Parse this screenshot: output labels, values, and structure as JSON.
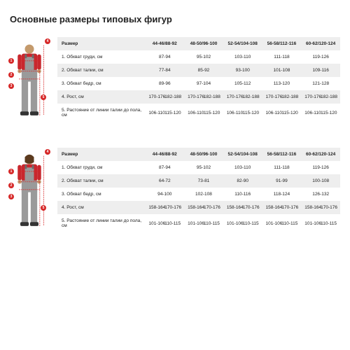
{
  "page_title": "Основные размеры типовых фигур",
  "colors": {
    "accent": "#d62828",
    "head": "#c49a6c",
    "shirt": "#c9272d",
    "overall": "#9a9a9a",
    "strap": "#6b6b6b",
    "header_bg": "#eeeeee",
    "row_alt_bg": "#eeeeee",
    "text": "#222222"
  },
  "tables": [
    {
      "figure_type": "male",
      "markers": [
        "1",
        "2",
        "3",
        "4",
        "5"
      ],
      "header_label": "Размер",
      "size_cols": [
        "44-46/88-92",
        "48-50/96-100",
        "52-54/104-108",
        "56-58/112-116",
        "60-62/120-124"
      ],
      "rows": [
        {
          "label": "1. Обхват груди, см",
          "cells": [
            "87-94",
            "95-102",
            "103-110",
            "111-118",
            "119-126"
          ]
        },
        {
          "label": "2. Обхват талии, см",
          "cells": [
            "77-84",
            "85-92",
            "93-100",
            "101-108",
            "109-116"
          ]
        },
        {
          "label": "3. Обхват бедр, см",
          "cells": [
            "89-96",
            "97-104",
            "105-112",
            "113-120",
            "121-128"
          ]
        },
        {
          "label": "4. Рост, см",
          "cells_split": [
            [
              "170-176",
              "182-188"
            ],
            [
              "170-176",
              "182-188"
            ],
            [
              "170-176",
              "182-188"
            ],
            [
              "170-176",
              "182-188"
            ],
            [
              "170-176",
              "182-188"
            ]
          ]
        },
        {
          "label": "5. Растояние от линии талии до пола, см",
          "cells_split": [
            [
              "106-110",
              "115-120"
            ],
            [
              "106-110",
              "115-120"
            ],
            [
              "106-110",
              "115-120"
            ],
            [
              "106-110",
              "115-120"
            ],
            [
              "106-110",
              "115-120"
            ]
          ]
        }
      ]
    },
    {
      "figure_type": "female",
      "markers": [
        "1",
        "2",
        "3",
        "4",
        "5"
      ],
      "header_label": "Размер",
      "size_cols": [
        "44-46/88-92",
        "48-50/96-100",
        "52-54/104-108",
        "56-58/112-116",
        "60-62/120-124"
      ],
      "rows": [
        {
          "label": "1. Обхват груди, см",
          "cells": [
            "87-94",
            "95-102",
            "103-110",
            "111-118",
            "119-126"
          ]
        },
        {
          "label": "2. Обхват талии, см",
          "cells": [
            "64-72",
            "73-81",
            "82-90",
            "91-99",
            "100-108"
          ]
        },
        {
          "label": "3. Обхват бедр, см",
          "cells": [
            "94-100",
            "102-108",
            "110-116",
            "118-124",
            "126-132"
          ]
        },
        {
          "label": "4. Рост, см",
          "cells_split": [
            [
              "158-164",
              "170-176"
            ],
            [
              "158-164",
              "170-176"
            ],
            [
              "158-164",
              "170-176"
            ],
            [
              "158-164",
              "170-176"
            ],
            [
              "158-164",
              "170-176"
            ]
          ]
        },
        {
          "label": "5. Растояние от линии талии до пола, см",
          "cells_split": [
            [
              "101-106",
              "110-115"
            ],
            [
              "101-106",
              "110-115"
            ],
            [
              "101-106",
              "110-115"
            ],
            [
              "101-106",
              "110-115"
            ],
            [
              "101-106",
              "110-115"
            ]
          ]
        }
      ]
    }
  ]
}
